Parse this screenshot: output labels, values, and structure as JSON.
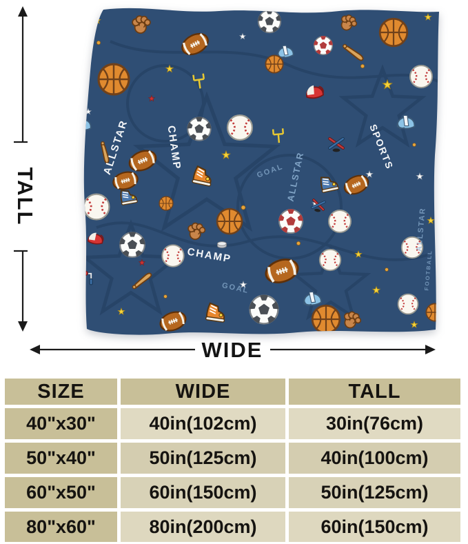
{
  "colors": {
    "page_bg": "#ffffff",
    "blanket_navy": "#2f4e74",
    "table_header_bg": "#c8bf98",
    "table_cell_bg": "#dcd5ba",
    "arrow_black": "#1a1a1a"
  },
  "dimension_labels": {
    "tall": "TALL",
    "wide": "WIDE"
  },
  "blanket": {
    "words": [
      "ALLSTAR",
      "CHAMP",
      "SPORTS",
      "GOAL",
      "FOOTBALL"
    ],
    "icons": [
      "basketball",
      "baseball",
      "soccer-ball",
      "football",
      "star",
      "baseball-glove",
      "batting-helmet",
      "hockey-helmet",
      "sneaker",
      "baseball-bat",
      "hockey-sticks",
      "goal-post",
      "paint-roller",
      "puck"
    ]
  },
  "size_table": {
    "headers": [
      "SIZE",
      "WIDE",
      "TALL"
    ],
    "rows": [
      [
        "40\"x30\"",
        "40in(102cm)",
        "30in(76cm)"
      ],
      [
        "50\"x40\"",
        "50in(125cm)",
        "40in(100cm)"
      ],
      [
        "60\"x50\"",
        "60in(150cm)",
        "50in(125cm)"
      ],
      [
        "80\"x60\"",
        "80in(200cm)",
        "60in(150cm)"
      ]
    ]
  }
}
